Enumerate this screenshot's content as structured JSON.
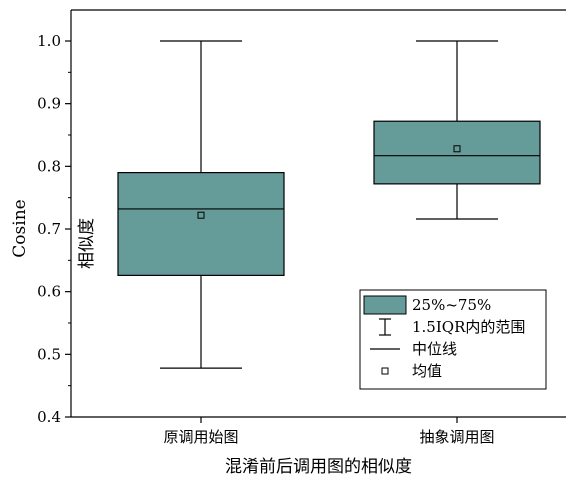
{
  "chart_data": {
    "type": "box",
    "title": "",
    "xlabel": "混淆前后调用图的相似度",
    "ylabel": "Cosine 相似度",
    "ylabel_latin": "Cosine",
    "ylabel_cjk": "相似度",
    "ylim": [
      0.4,
      1.05
    ],
    "yticks": [
      0.4,
      0.5,
      0.6,
      0.7,
      0.8,
      0.9,
      1.0
    ],
    "ytick_labels": [
      "0.4",
      "0.5",
      "0.6",
      "0.7",
      "0.8",
      "0.9",
      "1.0"
    ],
    "categories": [
      "原调用始图",
      "抽象调用图"
    ],
    "boxes": [
      {
        "name": "原调用始图",
        "whisker_low": 0.478,
        "q1": 0.626,
        "median": 0.732,
        "q3": 0.79,
        "whisker_high": 1.0,
        "mean": 0.722
      },
      {
        "name": "抽象调用图",
        "whisker_low": 0.716,
        "q1": 0.772,
        "median": 0.817,
        "q3": 0.872,
        "whisker_high": 1.0,
        "mean": 0.828
      }
    ],
    "box_color": "#659c9a",
    "legend": {
      "placement": "bottom-right",
      "entries": [
        {
          "label": "25%~75%",
          "symbol": "box"
        },
        {
          "label": "1.5IQR内的范围",
          "symbol": "whisker"
        },
        {
          "label": "中位线",
          "symbol": "line"
        },
        {
          "label": "均值",
          "symbol": "square"
        }
      ]
    },
    "grid": false
  }
}
